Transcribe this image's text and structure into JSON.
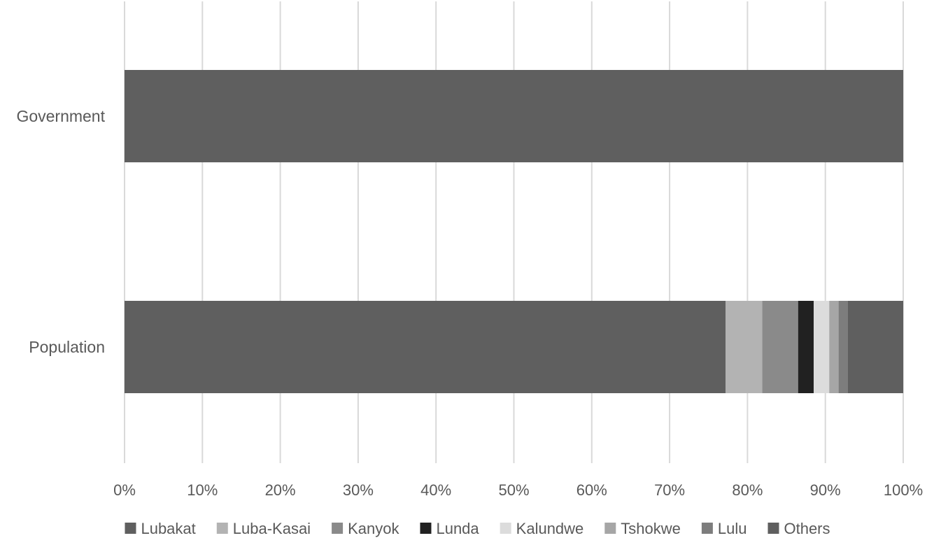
{
  "chart_data": {
    "type": "bar",
    "orientation": "horizontal",
    "stacked": "percent",
    "title": "",
    "xlabel": "",
    "ylabel": "",
    "categories": [
      "Government",
      "Population"
    ],
    "xlim": [
      0,
      100
    ],
    "x_ticks": [
      "0%",
      "10%",
      "20%",
      "30%",
      "40%",
      "50%",
      "60%",
      "70%",
      "80%",
      "90%",
      "100%"
    ],
    "grid": true,
    "legend_position": "bottom",
    "series": [
      {
        "name": "Lubakat",
        "color": "#5f5f5f",
        "values": [
          100,
          77.2
        ]
      },
      {
        "name": "Luba-Kasai",
        "color": "#b3b3b3",
        "values": [
          0,
          4.7
        ]
      },
      {
        "name": "Kanyok",
        "color": "#8a8a8a",
        "values": [
          0,
          4.6
        ]
      },
      {
        "name": "Lunda",
        "color": "#212121",
        "values": [
          0,
          2.0
        ]
      },
      {
        "name": "Kalundwe",
        "color": "#dcdcdc",
        "values": [
          0,
          2.0
        ]
      },
      {
        "name": "Tshokwe",
        "color": "#a6a6a6",
        "values": [
          0,
          1.2
        ]
      },
      {
        "name": "Lulu",
        "color": "#7d7d7d",
        "values": [
          0,
          1.2
        ]
      },
      {
        "name": "Others",
        "color": "#5f5f5f",
        "values": [
          0,
          7.1
        ]
      }
    ]
  }
}
